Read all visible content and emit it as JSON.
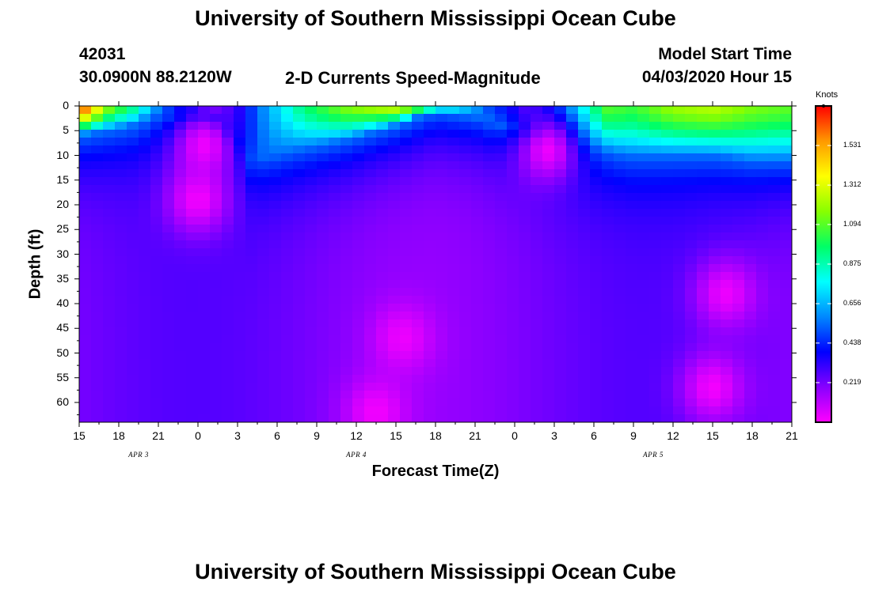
{
  "header": {
    "title_top": "University of Southern Mississippi Ocean Cube",
    "title_bottom": "University of Southern Mississippi Ocean Cube",
    "station_id": "42031",
    "station_coords": "30.0900N 88.2120W",
    "subtitle": "2-D Currents Speed-Magnitude",
    "model_start_label": "Model Start Time",
    "model_start_value": "04/03/2020 Hour 15"
  },
  "chart_data": {
    "type": "heatmap",
    "title": "2-D Currents Speed-Magnitude",
    "xlabel": "Forecast Time(Z)",
    "ylabel": "Depth (ft)",
    "x_ticks": [
      "15",
      "18",
      "21",
      "0",
      "3",
      "6",
      "9",
      "12",
      "15",
      "18",
      "21",
      "0",
      "3",
      "6",
      "9",
      "12",
      "15",
      "18",
      "21"
    ],
    "x_range_hours": [
      0,
      54
    ],
    "day_labels": [
      {
        "label": "APR 3",
        "hour": 4.5
      },
      {
        "label": "APR 4",
        "hour": 21
      },
      {
        "label": "APR 5",
        "hour": 43.5
      }
    ],
    "y_ticks": [
      0,
      5,
      10,
      15,
      20,
      25,
      30,
      35,
      40,
      45,
      50,
      55,
      60
    ],
    "y_range_ft": [
      0,
      64
    ],
    "colorbar": {
      "unit": "Knots",
      "range": [
        0,
        1.75
      ],
      "ticks": [
        "1.531",
        "1.312",
        "1.094",
        "0.875",
        "0.656",
        "0.438",
        "0.219"
      ],
      "tick_values": [
        1.531,
        1.312,
        1.094,
        0.875,
        0.656,
        0.438,
        0.219
      ],
      "colors": [
        "#ff00ff",
        "#8800ff",
        "#0000ff",
        "#0088ff",
        "#00ffff",
        "#00ff66",
        "#88ff00",
        "#ffff00",
        "#ff9900",
        "#ff0000"
      ]
    },
    "surface_speed_by_hour": [
      [
        0,
        1.75
      ],
      [
        2,
        1.2
      ],
      [
        4,
        0.95
      ],
      [
        6,
        0.6
      ],
      [
        8,
        0.35
      ],
      [
        10,
        0.25
      ],
      [
        12,
        0.35
      ],
      [
        14,
        0.6
      ],
      [
        17,
        0.95
      ],
      [
        20,
        1.15
      ],
      [
        24,
        1.3
      ],
      [
        27,
        1.0
      ],
      [
        31,
        0.5
      ],
      [
        34,
        0.3
      ],
      [
        36,
        0.5
      ],
      [
        38,
        0.8
      ],
      [
        40,
        1.1
      ],
      [
        42,
        1.05
      ],
      [
        45,
        1.2
      ],
      [
        48,
        1.25
      ],
      [
        51,
        1.15
      ],
      [
        54,
        1.1
      ]
    ],
    "mixed_layer_depth_ft": [
      [
        0,
        6
      ],
      [
        4,
        4
      ],
      [
        6,
        2
      ],
      [
        9,
        1
      ],
      [
        10.5,
        3
      ],
      [
        12,
        7
      ],
      [
        13,
        11
      ],
      [
        16,
        9
      ],
      [
        20,
        7
      ],
      [
        24,
        4
      ],
      [
        27,
        1
      ],
      [
        30,
        2
      ],
      [
        32,
        4
      ],
      [
        34,
        5
      ],
      [
        36,
        7
      ],
      [
        39,
        9
      ],
      [
        42,
        10
      ],
      [
        45,
        10
      ],
      [
        48,
        10
      ],
      [
        51,
        11
      ],
      [
        54,
        11
      ]
    ],
    "low_speed_cores": [
      {
        "hour": 9.5,
        "depth_ft": 8,
        "speed": 0.03
      },
      {
        "hour": 9.0,
        "depth_ft": 19,
        "speed": 0.02
      },
      {
        "hour": 24.5,
        "depth_ft": 47,
        "speed": 0.03
      },
      {
        "hour": 22.5,
        "depth_ft": 62,
        "speed": 0.02
      },
      {
        "hour": 35.5,
        "depth_ft": 9,
        "speed": 0.03
      },
      {
        "hour": 49,
        "depth_ft": 38,
        "speed": 0.03
      },
      {
        "hour": 48,
        "depth_ft": 57,
        "speed": 0.02
      }
    ]
  }
}
